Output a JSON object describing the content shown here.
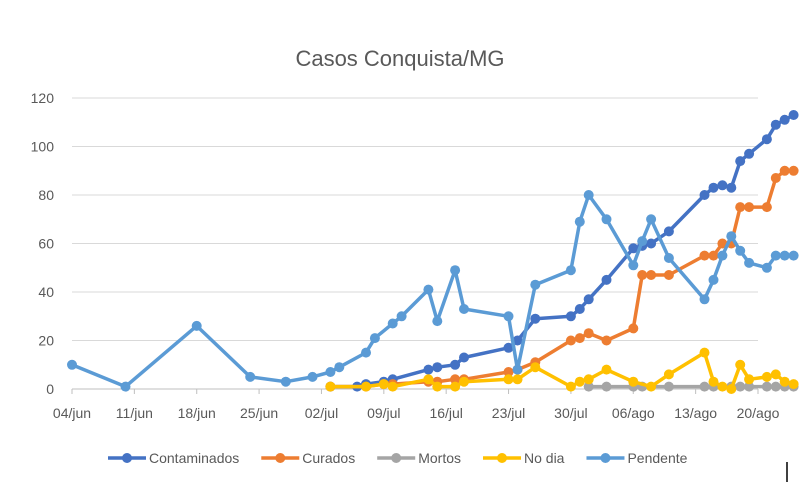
{
  "chart_data": {
    "type": "line",
    "title": "Casos Conquista/MG",
    "xlabel": "",
    "ylabel": "",
    "x_ticks": [
      "04/jun",
      "11/jun",
      "18/jun",
      "25/jun",
      "02/jul",
      "09/jul",
      "16/jul",
      "23/jul",
      "30/jul",
      "06/ago",
      "13/ago",
      "20/ago"
    ],
    "xlim": [
      "2020-06-04",
      "2020-08-20"
    ],
    "ylim": [
      0,
      120
    ],
    "y_ticks": [
      0,
      20,
      40,
      60,
      80,
      100,
      120
    ],
    "grid": true,
    "legend_position": "bottom",
    "series": [
      {
        "name": "Contaminados",
        "color": "#4472C4",
        "points": [
          [
            "2020-07-03",
            1
          ],
          [
            "2020-07-06",
            1
          ],
          [
            "2020-07-07",
            2
          ],
          [
            "2020-07-09",
            3
          ],
          [
            "2020-07-10",
            4
          ],
          [
            "2020-07-14",
            8
          ],
          [
            "2020-07-15",
            9
          ],
          [
            "2020-07-17",
            10
          ],
          [
            "2020-07-18",
            13
          ],
          [
            "2020-07-23",
            17
          ],
          [
            "2020-07-24",
            20
          ],
          [
            "2020-07-26",
            29
          ],
          [
            "2020-07-30",
            30
          ],
          [
            "2020-07-31",
            33
          ],
          [
            "2020-08-01",
            37
          ],
          [
            "2020-08-03",
            45
          ],
          [
            "2020-08-06",
            58
          ],
          [
            "2020-08-07",
            59
          ],
          [
            "2020-08-08",
            60
          ],
          [
            "2020-08-10",
            65
          ],
          [
            "2020-08-14",
            80
          ],
          [
            "2020-08-15",
            83
          ],
          [
            "2020-08-16",
            84
          ],
          [
            "2020-08-17",
            83
          ],
          [
            "2020-08-18",
            94
          ],
          [
            "2020-08-19",
            97
          ],
          [
            "2020-08-21",
            103
          ],
          [
            "2020-08-22",
            109
          ],
          [
            "2020-08-23",
            111
          ],
          [
            "2020-08-24",
            113
          ]
        ]
      },
      {
        "name": "Curados",
        "color": "#ED7D31",
        "points": [
          [
            "2020-07-03",
            1
          ],
          [
            "2020-07-07",
            1
          ],
          [
            "2020-07-09",
            2
          ],
          [
            "2020-07-10",
            2
          ],
          [
            "2020-07-14",
            3
          ],
          [
            "2020-07-15",
            3
          ],
          [
            "2020-07-17",
            4
          ],
          [
            "2020-07-18",
            4
          ],
          [
            "2020-07-23",
            7
          ],
          [
            "2020-07-24",
            8
          ],
          [
            "2020-07-26",
            11
          ],
          [
            "2020-07-30",
            20
          ],
          [
            "2020-07-31",
            21
          ],
          [
            "2020-08-01",
            23
          ],
          [
            "2020-08-03",
            20
          ],
          [
            "2020-08-06",
            25
          ],
          [
            "2020-08-07",
            47
          ],
          [
            "2020-08-08",
            47
          ],
          [
            "2020-08-10",
            47
          ],
          [
            "2020-08-14",
            55
          ],
          [
            "2020-08-15",
            55
          ],
          [
            "2020-08-16",
            60
          ],
          [
            "2020-08-17",
            60
          ],
          [
            "2020-08-18",
            75
          ],
          [
            "2020-08-19",
            75
          ],
          [
            "2020-08-21",
            75
          ],
          [
            "2020-08-22",
            87
          ],
          [
            "2020-08-23",
            90
          ],
          [
            "2020-08-24",
            90
          ]
        ]
      },
      {
        "name": "Mortos",
        "color": "#A5A5A5",
        "points": [
          [
            "2020-08-01",
            1
          ],
          [
            "2020-08-03",
            1
          ],
          [
            "2020-08-06",
            1
          ],
          [
            "2020-08-07",
            1
          ],
          [
            "2020-08-10",
            1
          ],
          [
            "2020-08-14",
            1
          ],
          [
            "2020-08-15",
            1
          ],
          [
            "2020-08-17",
            1
          ],
          [
            "2020-08-18",
            1
          ],
          [
            "2020-08-19",
            1
          ],
          [
            "2020-08-21",
            1
          ],
          [
            "2020-08-22",
            1
          ],
          [
            "2020-08-23",
            1
          ],
          [
            "2020-08-24",
            1
          ]
        ]
      },
      {
        "name": "No dia",
        "color": "#FFC000",
        "points": [
          [
            "2020-07-03",
            1
          ],
          [
            "2020-07-07",
            1
          ],
          [
            "2020-07-09",
            2
          ],
          [
            "2020-07-10",
            1
          ],
          [
            "2020-07-14",
            4
          ],
          [
            "2020-07-15",
            1
          ],
          [
            "2020-07-17",
            1
          ],
          [
            "2020-07-18",
            3
          ],
          [
            "2020-07-23",
            4
          ],
          [
            "2020-07-24",
            4
          ],
          [
            "2020-07-26",
            9
          ],
          [
            "2020-07-30",
            1
          ],
          [
            "2020-07-31",
            3
          ],
          [
            "2020-08-01",
            4
          ],
          [
            "2020-08-03",
            8
          ],
          [
            "2020-08-06",
            3
          ],
          [
            "2020-08-08",
            1
          ],
          [
            "2020-08-10",
            6
          ],
          [
            "2020-08-14",
            15
          ],
          [
            "2020-08-15",
            3
          ],
          [
            "2020-08-16",
            1
          ],
          [
            "2020-08-17",
            0
          ],
          [
            "2020-08-18",
            10
          ],
          [
            "2020-08-19",
            4
          ],
          [
            "2020-08-21",
            5
          ],
          [
            "2020-08-22",
            6
          ],
          [
            "2020-08-23",
            3
          ],
          [
            "2020-08-24",
            2
          ]
        ]
      },
      {
        "name": "Pendente",
        "color": "#5B9BD5",
        "points": [
          [
            "2020-06-04",
            10
          ],
          [
            "2020-06-10",
            1
          ],
          [
            "2020-06-18",
            26
          ],
          [
            "2020-06-24",
            5
          ],
          [
            "2020-06-28",
            3
          ],
          [
            "2020-07-01",
            5
          ],
          [
            "2020-07-03",
            7
          ],
          [
            "2020-07-04",
            9
          ],
          [
            "2020-07-07",
            15
          ],
          [
            "2020-07-08",
            21
          ],
          [
            "2020-07-10",
            27
          ],
          [
            "2020-07-11",
            30
          ],
          [
            "2020-07-14",
            41
          ],
          [
            "2020-07-15",
            28
          ],
          [
            "2020-07-17",
            49
          ],
          [
            "2020-07-18",
            33
          ],
          [
            "2020-07-23",
            30
          ],
          [
            "2020-07-24",
            8
          ],
          [
            "2020-07-26",
            43
          ],
          [
            "2020-07-30",
            49
          ],
          [
            "2020-07-31",
            69
          ],
          [
            "2020-08-01",
            80
          ],
          [
            "2020-08-03",
            70
          ],
          [
            "2020-08-06",
            51
          ],
          [
            "2020-08-07",
            61
          ],
          [
            "2020-08-08",
            70
          ],
          [
            "2020-08-10",
            54
          ],
          [
            "2020-08-14",
            37
          ],
          [
            "2020-08-15",
            45
          ],
          [
            "2020-08-16",
            55
          ],
          [
            "2020-08-17",
            63
          ],
          [
            "2020-08-18",
            57
          ],
          [
            "2020-08-19",
            52
          ],
          [
            "2020-08-21",
            50
          ],
          [
            "2020-08-22",
            55
          ],
          [
            "2020-08-23",
            55
          ],
          [
            "2020-08-24",
            55
          ]
        ]
      }
    ]
  }
}
